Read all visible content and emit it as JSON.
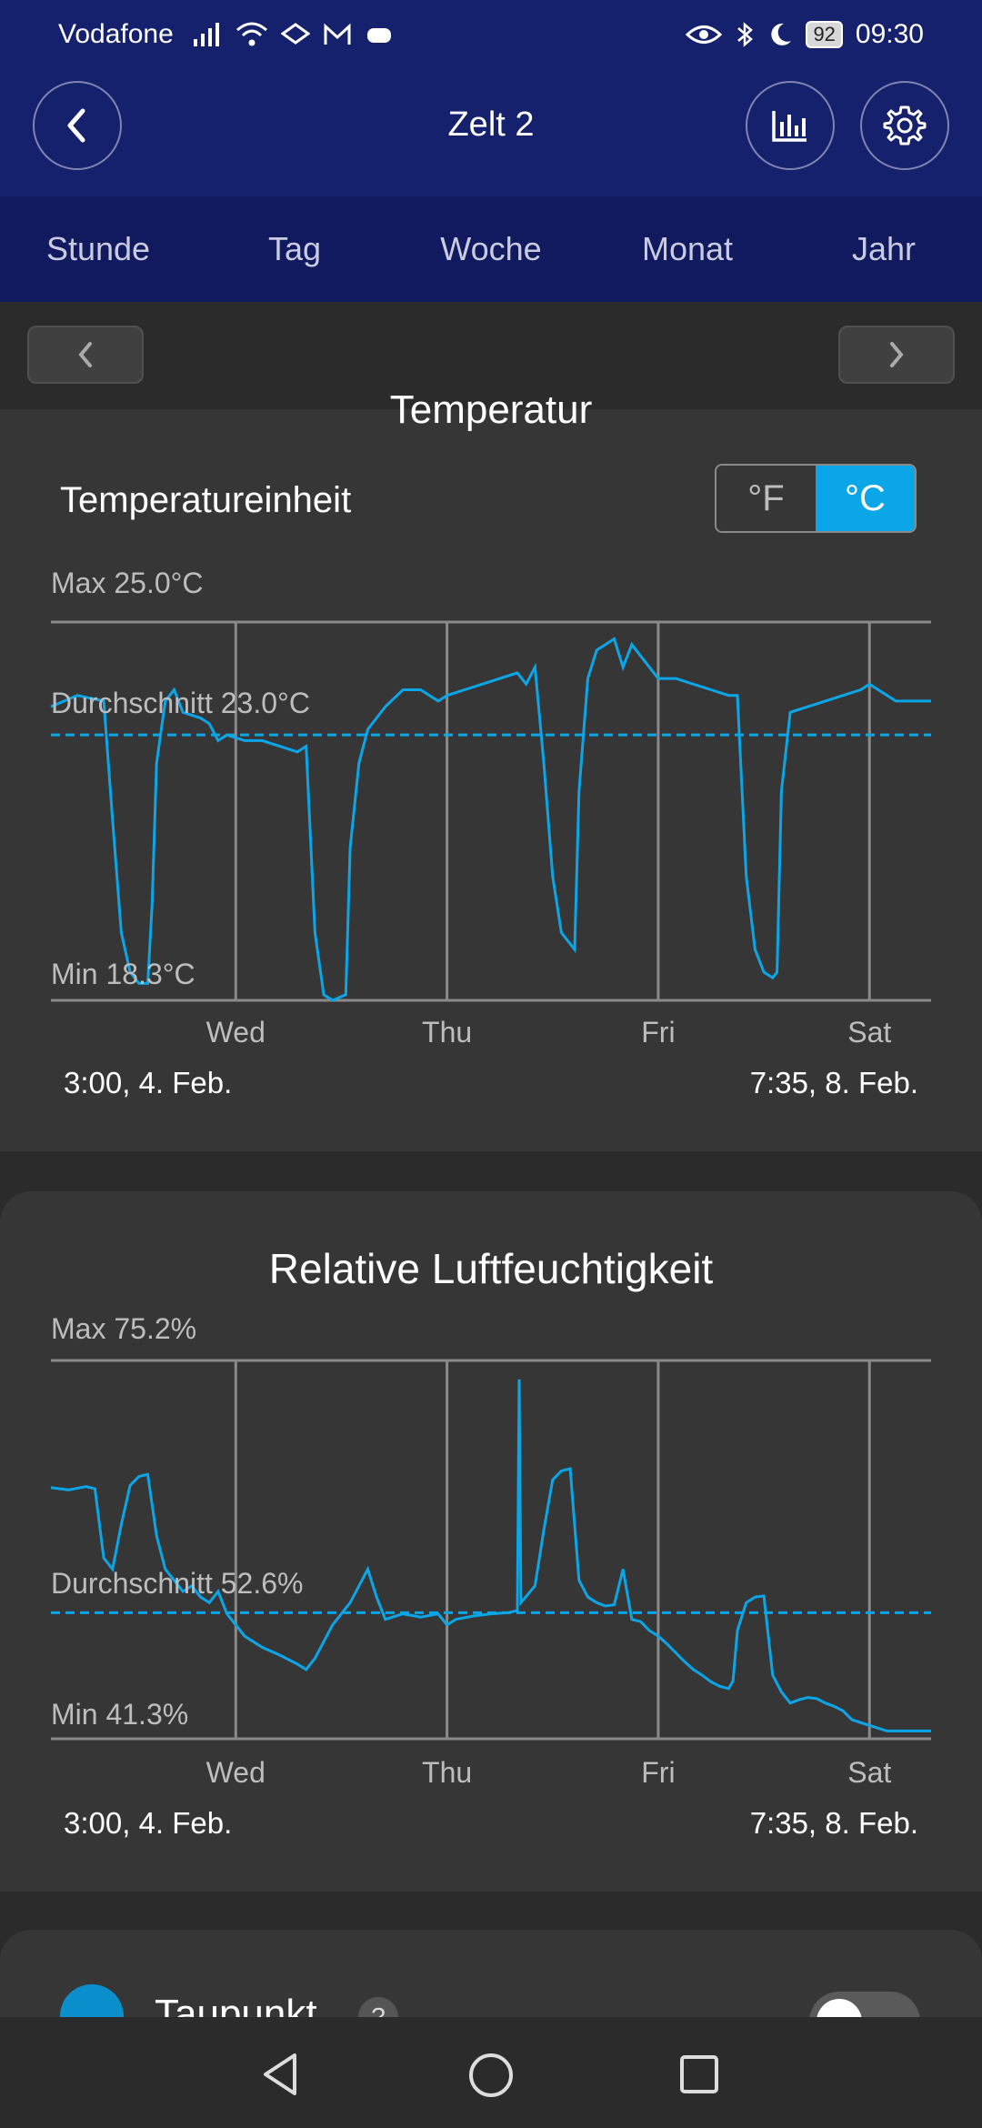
{
  "status": {
    "carrier": "Vodafone",
    "battery": "92",
    "time": "09:30"
  },
  "header": {
    "title": "Zelt 2",
    "back_icon": "chevron-left-icon",
    "stats_icon": "bar-chart-icon",
    "settings_icon": "gear-icon"
  },
  "tabs": [
    "Stunde",
    "Tag",
    "Woche",
    "Monat",
    "Jahr"
  ],
  "temperature": {
    "section_title": "Temperatur",
    "unit_label": "Temperatureinheit",
    "unit_f": "°F",
    "unit_c": "°C",
    "selected_unit": "°C",
    "accent": "#0aa6e8"
  },
  "humidity": {
    "title": "Relative Luftfeuchtigkeit"
  },
  "dewpoint": {
    "label": "Taupunkt",
    "help": "?",
    "enabled": false
  },
  "chart_data": [
    {
      "type": "line",
      "max_label": "Max 25.0°C",
      "avg_label": "Durchschnitt 23.0°C",
      "min_label": "Min 18.3°C",
      "ylim": [
        18.3,
        25.0
      ],
      "average": 23.0,
      "xlim": [
        0,
        100
      ],
      "x_ticks": [
        {
          "x": 21,
          "label": "Wed"
        },
        {
          "x": 45,
          "label": "Thu"
        },
        {
          "x": 69,
          "label": "Fri"
        },
        {
          "x": 93,
          "label": "Sat"
        }
      ],
      "start_label": "3:00,  4. Feb.",
      "end_label": "7:35,  8. Feb.",
      "grid": true,
      "series": [
        {
          "color": "#0aa6e8",
          "points": [
            [
              0,
              23.5
            ],
            [
              3,
              23.7
            ],
            [
              6,
              23.6
            ],
            [
              7,
              21.5
            ],
            [
              8,
              19.5
            ],
            [
              9,
              18.8
            ],
            [
              10,
              18.6
            ],
            [
              11,
              18.6
            ],
            [
              11.5,
              20
            ],
            [
              12,
              22.5
            ],
            [
              13,
              23.6
            ],
            [
              14,
              23.8
            ],
            [
              15,
              23.4
            ],
            [
              17,
              23.3
            ],
            [
              18,
              23.2
            ],
            [
              19,
              22.9
            ],
            [
              20,
              23.0
            ],
            [
              22,
              22.9
            ],
            [
              24,
              22.9
            ],
            [
              26,
              22.8
            ],
            [
              28,
              22.7
            ],
            [
              29,
              22.8
            ],
            [
              30,
              19.5
            ],
            [
              31,
              18.4
            ],
            [
              32,
              18.3
            ],
            [
              33.5,
              18.4
            ],
            [
              34,
              21
            ],
            [
              35,
              22.5
            ],
            [
              36,
              23.1
            ],
            [
              38,
              23.5
            ],
            [
              40,
              23.8
            ],
            [
              42,
              23.8
            ],
            [
              44,
              23.6
            ],
            [
              45,
              23.7
            ],
            [
              47,
              23.8
            ],
            [
              49,
              23.9
            ],
            [
              51,
              24.0
            ],
            [
              53,
              24.1
            ],
            [
              54,
              23.9
            ],
            [
              55,
              24.2
            ],
            [
              56,
              22.5
            ],
            [
              57,
              20.5
            ],
            [
              58,
              19.5
            ],
            [
              59,
              19.3
            ],
            [
              59.5,
              19.2
            ],
            [
              60,
              22
            ],
            [
              61,
              24.0
            ],
            [
              62,
              24.5
            ],
            [
              63,
              24.6
            ],
            [
              64,
              24.7
            ],
            [
              65,
              24.2
            ],
            [
              66,
              24.6
            ],
            [
              67,
              24.4
            ],
            [
              68,
              24.2
            ],
            [
              69,
              24.0
            ],
            [
              71,
              24.0
            ],
            [
              73,
              23.9
            ],
            [
              75,
              23.8
            ],
            [
              77,
              23.7
            ],
            [
              78,
              23.7
            ],
            [
              79,
              20.5
            ],
            [
              80,
              19.2
            ],
            [
              81,
              18.8
            ],
            [
              82,
              18.7
            ],
            [
              82.5,
              18.8
            ],
            [
              83,
              22
            ],
            [
              84,
              23.4
            ],
            [
              86,
              23.5
            ],
            [
              88,
              23.6
            ],
            [
              90,
              23.7
            ],
            [
              92,
              23.8
            ],
            [
              93,
              23.9
            ],
            [
              94,
              23.8
            ],
            [
              96,
              23.6
            ],
            [
              98,
              23.6
            ],
            [
              100,
              23.6
            ]
          ]
        }
      ]
    },
    {
      "type": "line",
      "max_label": "Max 75.2%",
      "avg_label": "Durchschnitt 52.6%",
      "min_label": "Min 41.3%",
      "ylim": [
        41.3,
        75.2
      ],
      "average": 52.6,
      "xlim": [
        0,
        100
      ],
      "x_ticks": [
        {
          "x": 21,
          "label": "Wed"
        },
        {
          "x": 45,
          "label": "Thu"
        },
        {
          "x": 69,
          "label": "Fri"
        },
        {
          "x": 93,
          "label": "Sat"
        }
      ],
      "start_label": "3:00,  4. Feb.",
      "end_label": "7:35,  8. Feb.",
      "grid": true,
      "series": [
        {
          "color": "#0aa6e8",
          "points": [
            [
              0,
              63.8
            ],
            [
              2,
              63.6
            ],
            [
              4,
              63.9
            ],
            [
              5,
              63.7
            ],
            [
              6,
              57.5
            ],
            [
              7,
              56.5
            ],
            [
              8,
              60.5
            ],
            [
              9,
              64.0
            ],
            [
              10,
              64.8
            ],
            [
              11,
              65.0
            ],
            [
              12,
              59.5
            ],
            [
              13,
              56.5
            ],
            [
              14,
              55.5
            ],
            [
              15,
              54.5
            ],
            [
              16,
              55.0
            ],
            [
              17,
              54.0
            ],
            [
              18,
              53.5
            ],
            [
              19,
              54.5
            ],
            [
              20,
              52.5
            ],
            [
              21,
              51.5
            ],
            [
              22,
              50.5
            ],
            [
              24,
              49.5
            ],
            [
              26,
              48.8
            ],
            [
              28,
              48.0
            ],
            [
              29,
              47.5
            ],
            [
              30,
              48.5
            ],
            [
              31,
              50.0
            ],
            [
              32,
              51.5
            ],
            [
              34,
              53.5
            ],
            [
              35,
              55.0
            ],
            [
              36,
              56.5
            ],
            [
              37,
              54.0
            ],
            [
              38,
              52.0
            ],
            [
              40,
              52.5
            ],
            [
              42,
              52.2
            ],
            [
              44,
              52.5
            ],
            [
              45,
              51.5
            ],
            [
              46,
              52.0
            ],
            [
              48,
              52.3
            ],
            [
              50,
              52.5
            ],
            [
              52,
              52.6
            ],
            [
              53,
              52.8
            ],
            [
              53.2,
              73.5
            ],
            [
              53.4,
              53.5
            ],
            [
              55,
              55.0
            ],
            [
              56,
              60
            ],
            [
              57,
              64.5
            ],
            [
              58,
              65.3
            ],
            [
              59,
              65.5
            ],
            [
              60,
              55.5
            ],
            [
              61,
              54.0
            ],
            [
              62,
              53.5
            ],
            [
              63,
              53.2
            ],
            [
              64,
              53.3
            ],
            [
              65,
              56.5
            ],
            [
              66,
              52.0
            ],
            [
              67,
              51.8
            ],
            [
              68,
              51.0
            ],
            [
              69,
              50.5
            ],
            [
              70,
              49.8
            ],
            [
              71,
              49.0
            ],
            [
              72,
              48.2
            ],
            [
              73,
              47.5
            ],
            [
              74,
              47.0
            ],
            [
              75,
              46.4
            ],
            [
              76,
              46.0
            ],
            [
              77,
              45.8
            ],
            [
              77.5,
              46.5
            ],
            [
              78,
              51
            ],
            [
              79,
              53.5
            ],
            [
              80,
              54.0
            ],
            [
              81,
              54.1
            ],
            [
              82,
              47
            ],
            [
              83,
              45.5
            ],
            [
              84,
              44.5
            ],
            [
              85,
              44.8
            ],
            [
              86,
              45.0
            ],
            [
              87,
              44.9
            ],
            [
              88,
              44.5
            ],
            [
              89,
              44.2
            ],
            [
              90,
              43.8
            ],
            [
              91,
              43.0
            ],
            [
              93,
              42.5
            ],
            [
              95,
              42.0
            ],
            [
              97,
              42.0
            ],
            [
              99,
              42.0
            ],
            [
              100,
              42.0
            ]
          ]
        }
      ]
    }
  ]
}
